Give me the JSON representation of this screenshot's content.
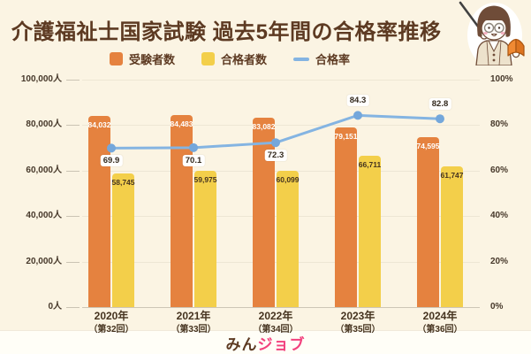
{
  "header": {
    "title": "介護福祉士国家試験 過去5年間の合格率推移",
    "mascot": "teacher-with-pointer-and-book"
  },
  "legend": [
    {
      "label": "受験者数",
      "color": "#E5823F",
      "type": "square"
    },
    {
      "label": "合格者数",
      "color": "#F3CF4A",
      "type": "square"
    },
    {
      "label": "合格率",
      "color": "#84B4E2",
      "type": "line"
    }
  ],
  "chart_data": {
    "type": "bar",
    "subtype": "grouped-bars-with-line",
    "categories": [
      "2020年",
      "2021年",
      "2022年",
      "2023年",
      "2024年"
    ],
    "category_sublabels": [
      "（第32回）",
      "（第33回）",
      "（第34回）",
      "（第35回）",
      "（第36回）"
    ],
    "series": [
      {
        "name": "受験者数",
        "type": "bar",
        "color": "#E5823F",
        "label_color": "#FFFFFF",
        "values": [
          84032,
          84483,
          83082,
          79151,
          74595
        ],
        "labels": [
          "84,032",
          "84,483",
          "83,082",
          "79,151",
          "74,595"
        ]
      },
      {
        "name": "合格者数",
        "type": "bar",
        "color": "#F3CF4A",
        "label_color": "#45331F",
        "values": [
          58745,
          59975,
          60099,
          66711,
          61747
        ],
        "labels": [
          "58,745",
          "59,975",
          "60,099",
          "66,711",
          "61,747"
        ]
      },
      {
        "name": "合格率",
        "type": "line",
        "color": "#84B4E2",
        "dot_color": "#74A7DB",
        "values": [
          69.9,
          70.1,
          72.3,
          84.3,
          82.8
        ],
        "labels": [
          "69.9",
          "70.1",
          "72.3",
          "84.3",
          "82.8"
        ],
        "label_position": [
          "below",
          "below",
          "below",
          "above",
          "above"
        ]
      }
    ],
    "left_axis": {
      "title": "",
      "ticks": [
        "100,000人",
        "80,000人",
        "60,000人",
        "40,000人",
        "20,000人",
        "0人"
      ],
      "min": 0,
      "max": 100000
    },
    "right_axis": {
      "title": "",
      "ticks": [
        "100%",
        "80%",
        "60%",
        "40%",
        "20%",
        "0%"
      ],
      "min": 0,
      "max": 100
    },
    "grid": true,
    "legend_position": "top"
  },
  "footer": {
    "logo_prefix": "みん",
    "logo_suffix": "ジョブ"
  }
}
